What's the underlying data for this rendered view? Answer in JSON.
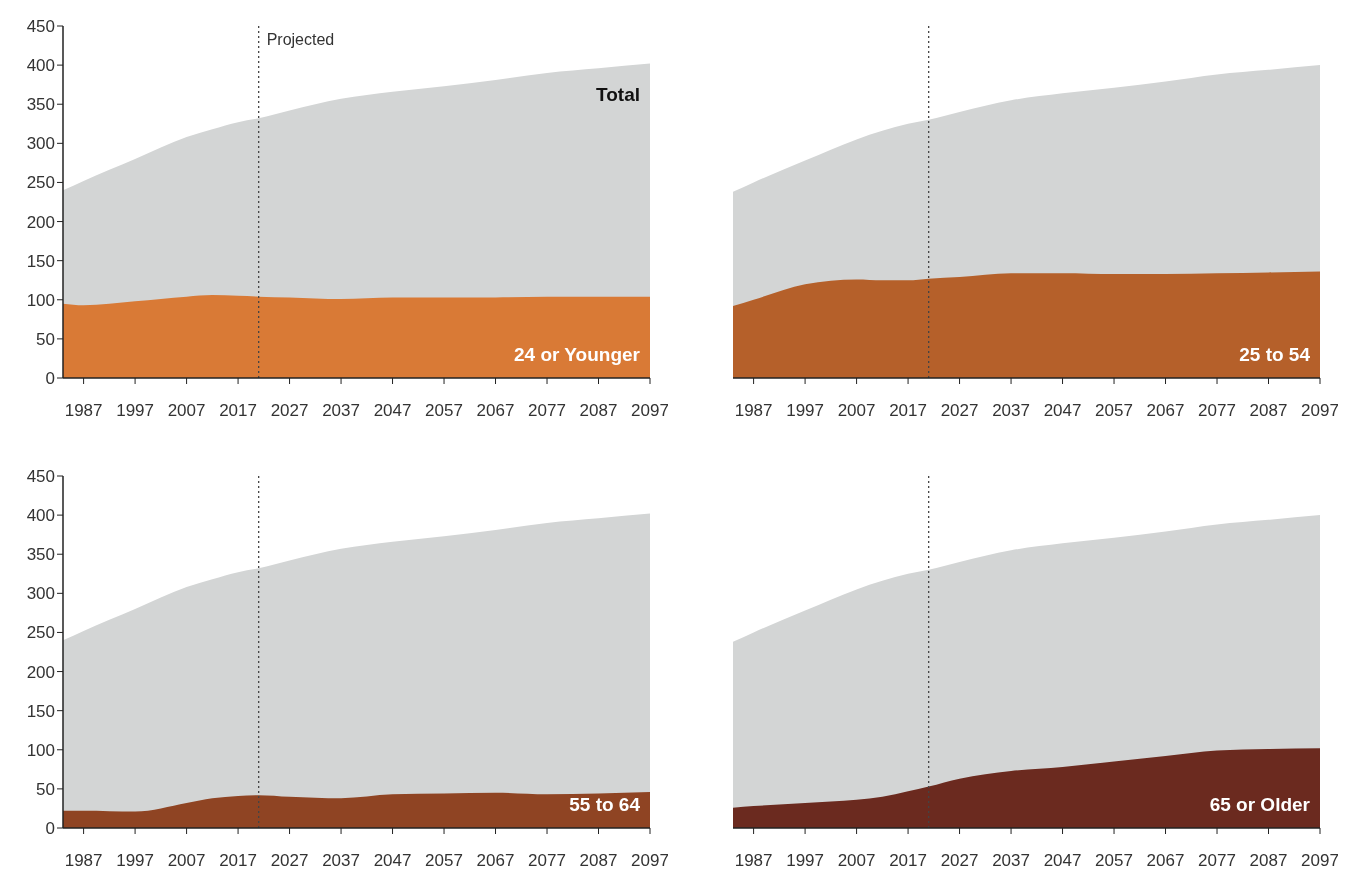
{
  "chart_data": [
    {
      "type": "area",
      "x": [
        1983,
        1987,
        1997,
        2007,
        2012,
        2017,
        2021,
        2027,
        2037,
        2047,
        2057,
        2067,
        2077,
        2087,
        2097
      ],
      "xlim": [
        1983,
        2097
      ],
      "xticks": [
        1987,
        1997,
        2007,
        2017,
        2027,
        2037,
        2047,
        2057,
        2067,
        2077,
        2087,
        2097
      ],
      "ylim": [
        0,
        450
      ],
      "yticks": [
        0,
        50,
        100,
        150,
        200,
        250,
        300,
        350,
        400,
        450
      ],
      "grid": false,
      "legend": false,
      "series": [
        {
          "name": "Total",
          "color": "#d3d5d5",
          "values": [
            240,
            252,
            280,
            308,
            318,
            327,
            332,
            342,
            357,
            366,
            373,
            381,
            390,
            396,
            402
          ]
        },
        {
          "name": "24 or Younger",
          "color": "#d97a36",
          "values": [
            95,
            93,
            98,
            104,
            106,
            105,
            104,
            103,
            101,
            103,
            103,
            103,
            104,
            104,
            104
          ]
        }
      ],
      "ref_lines": [
        {
          "axis": "x",
          "value": 2021,
          "label": "Projected",
          "line_style": "dotted"
        }
      ]
    },
    {
      "type": "area",
      "x": [
        1983,
        1987,
        1997,
        2007,
        2012,
        2017,
        2021,
        2027,
        2037,
        2047,
        2057,
        2067,
        2077,
        2087,
        2097
      ],
      "xlim": [
        1983,
        2097
      ],
      "xticks": [
        1987,
        1997,
        2007,
        2017,
        2027,
        2037,
        2047,
        2057,
        2067,
        2077,
        2087,
        2097
      ],
      "ylim": [
        0,
        450
      ],
      "tick_labels": "x",
      "grid": false,
      "legend": false,
      "series": [
        {
          "color": "#d3d5d5",
          "values": [
            238,
            250,
            278,
            305,
            316,
            325,
            330,
            340,
            355,
            364,
            371,
            379,
            388,
            394,
            400
          ]
        },
        {
          "name": "25 to 54",
          "color": "#b5602a",
          "values": [
            92,
            100,
            120,
            126,
            125,
            125,
            127,
            129,
            134,
            134,
            133,
            133,
            134,
            135,
            136
          ]
        }
      ],
      "ref_lines": [
        {
          "axis": "x",
          "value": 2021,
          "line_style": "dotted"
        }
      ]
    },
    {
      "type": "area",
      "x": [
        1983,
        1987,
        1997,
        2007,
        2012,
        2017,
        2021,
        2027,
        2037,
        2047,
        2057,
        2067,
        2077,
        2087,
        2097
      ],
      "xlim": [
        1983,
        2097
      ],
      "xticks": [
        1987,
        1997,
        2007,
        2017,
        2027,
        2037,
        2047,
        2057,
        2067,
        2077,
        2087,
        2097
      ],
      "ylim": [
        0,
        450
      ],
      "yticks": [
        0,
        50,
        100,
        150,
        200,
        250,
        300,
        350,
        400,
        450
      ],
      "grid": false,
      "legend": false,
      "series": [
        {
          "color": "#d3d5d5",
          "values": [
            240,
            252,
            280,
            308,
            318,
            327,
            332,
            342,
            357,
            366,
            373,
            381,
            390,
            396,
            402
          ]
        },
        {
          "name": "55 to 64",
          "color": "#8f4423",
          "values": [
            22,
            22,
            21,
            32,
            38,
            41,
            42,
            40,
            38,
            43,
            44,
            45,
            43,
            44,
            46
          ]
        }
      ],
      "ref_lines": [
        {
          "axis": "x",
          "value": 2021,
          "line_style": "dotted"
        }
      ]
    },
    {
      "type": "area",
      "x": [
        1983,
        1987,
        1997,
        2007,
        2012,
        2017,
        2021,
        2027,
        2037,
        2047,
        2057,
        2067,
        2077,
        2087,
        2097
      ],
      "xlim": [
        1983,
        2097
      ],
      "xticks": [
        1987,
        1997,
        2007,
        2017,
        2027,
        2037,
        2047,
        2057,
        2067,
        2077,
        2087,
        2097
      ],
      "ylim": [
        0,
        450
      ],
      "tick_labels": "x",
      "grid": false,
      "legend": false,
      "series": [
        {
          "color": "#d3d5d5",
          "values": [
            238,
            250,
            278,
            305,
            316,
            325,
            330,
            340,
            355,
            364,
            371,
            379,
            388,
            394,
            400
          ]
        },
        {
          "name": "65 or Older",
          "color": "#6b2a1f",
          "values": [
            26,
            28,
            32,
            36,
            40,
            47,
            53,
            63,
            73,
            78,
            85,
            92,
            99,
            101,
            102
          ]
        }
      ],
      "ref_lines": [
        {
          "axis": "x",
          "value": 2021,
          "line_style": "dotted"
        }
      ]
    }
  ]
}
